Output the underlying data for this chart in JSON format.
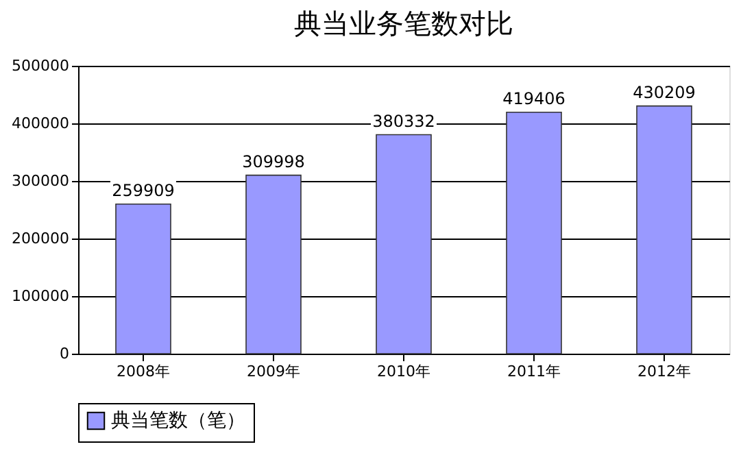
{
  "chart_data": {
    "type": "bar",
    "title": "典当业务笔数对比",
    "categories": [
      "2008年",
      "2009年",
      "2010年",
      "2011年",
      "2012年"
    ],
    "series": [
      {
        "name": "典当笔数（笔）",
        "color": "#9999ff",
        "values": [
          259909,
          309998,
          380332,
          419406,
          430209
        ]
      }
    ],
    "ylim": [
      0,
      500000
    ],
    "yticks": [
      0,
      100000,
      200000,
      300000,
      400000,
      500000
    ],
    "grid": "y",
    "legend": "bottom",
    "data_labels": true
  }
}
